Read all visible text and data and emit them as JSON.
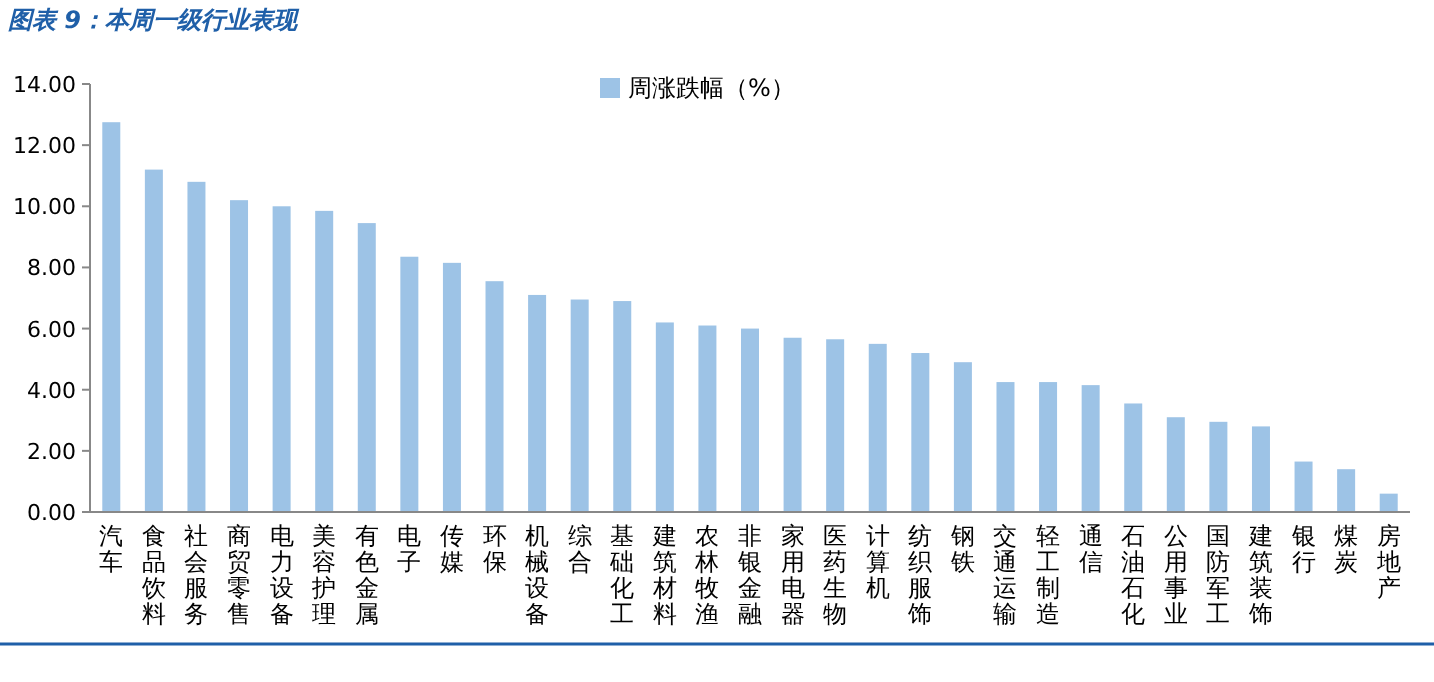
{
  "chart_data": {
    "type": "bar",
    "title": "图表 9：本周一级行业表现",
    "categories": [
      "汽车",
      "食品饮料",
      "社会服务",
      "商贸零售",
      "电力设备",
      "美容护理",
      "有色金属",
      "电子",
      "传媒",
      "环保",
      "机械设备",
      "综合",
      "基础化工",
      "建筑材料",
      "农林牧渔",
      "非银金融",
      "家用电器",
      "医药生物",
      "计算机",
      "纺织服饰",
      "钢铁",
      "交通运输",
      "轻工制造",
      "通信",
      "石油石化",
      "公用事业",
      "国防军工",
      "建筑装饰",
      "银行",
      "煤炭",
      "房地产"
    ],
    "series": [
      {
        "name": "周涨跌幅（%）",
        "color": "#9dc3e6",
        "values": [
          12.75,
          11.2,
          10.8,
          10.2,
          10.0,
          9.85,
          9.45,
          8.35,
          8.15,
          7.55,
          7.1,
          6.95,
          6.9,
          6.2,
          6.1,
          6.0,
          5.7,
          5.65,
          5.5,
          5.2,
          4.9,
          4.25,
          4.25,
          4.15,
          3.55,
          3.1,
          2.95,
          2.8,
          1.65,
          1.4,
          0.6
        ]
      }
    ],
    "ylim": [
      0,
      14
    ],
    "yticks": [
      {
        "value": 0,
        "label": "0.00"
      },
      {
        "value": 2,
        "label": "2.00"
      },
      {
        "value": 4,
        "label": "4.00"
      },
      {
        "value": 6,
        "label": "6.00"
      },
      {
        "value": 8,
        "label": "8.00"
      },
      {
        "value": 10,
        "label": "10.00"
      },
      {
        "value": 12,
        "label": "12.00"
      },
      {
        "value": 14,
        "label": "14.00"
      }
    ],
    "legend": "top"
  }
}
